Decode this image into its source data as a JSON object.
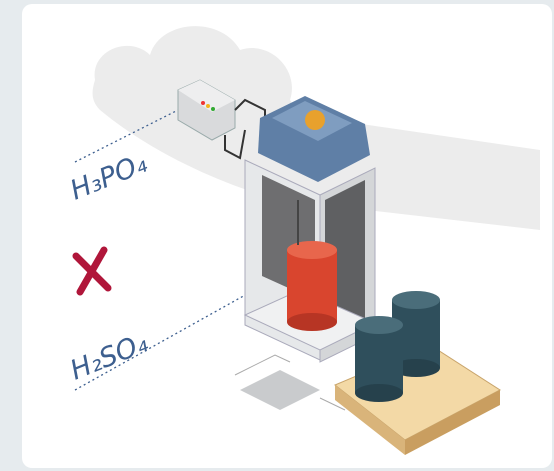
{
  "labels": {
    "top": "H₃PO₄",
    "bottom": "H₂SO₄"
  }
}
